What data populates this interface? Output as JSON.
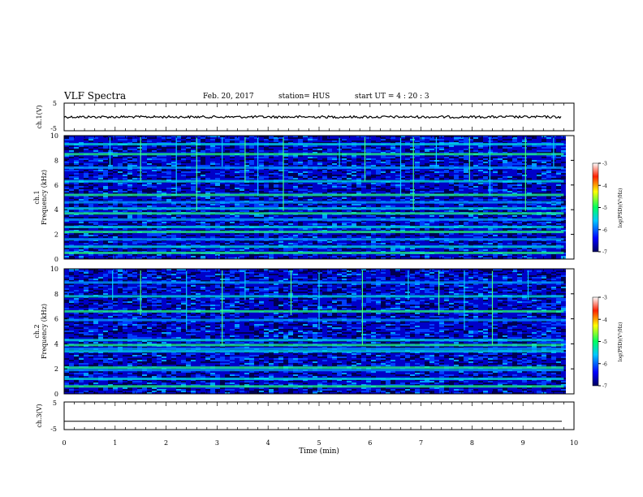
{
  "header": {
    "title": "VLF Spectra",
    "date": "Feb. 20, 2017",
    "station": "station= HUS",
    "start": "start  UT  =    4  : 20 : 3"
  },
  "colors": {
    "spectrogram_background": "#0a1a9a",
    "axis": "#000000"
  },
  "chart_data": [
    {
      "type": "line",
      "ylabel": "ch.1(V)",
      "ylim": [
        -5,
        5
      ],
      "yticks": [
        "5",
        "-5"
      ],
      "xlim": [
        0,
        10
      ],
      "series": [
        {
          "values": [
            0.0,
            0.1,
            -0.1,
            0.05,
            0.0
          ]
        }
      ],
      "level": 0.0
    },
    {
      "type": "heatmap",
      "ylabel": "ch.1\nFrequency (kHz)",
      "ylim": [
        0,
        10
      ],
      "yticks": [
        "0",
        "2",
        "4",
        "6",
        "8",
        "10"
      ],
      "xlim": [
        0,
        9.8
      ],
      "colorbar": {
        "label": "log(PSD)(V²/Hz)",
        "range": [
          -7,
          -3
        ],
        "ticks": [
          "-3",
          "-4",
          "-5",
          "-6",
          "-7"
        ]
      },
      "bright_bands_khz": [
        0.5,
        1.0,
        1.6,
        2.2,
        2.6,
        3.2,
        3.7,
        4.1,
        4.6,
        5.2,
        6.3,
        7.4,
        8.5,
        9.3
      ],
      "impulse_times_min": [
        0.9,
        1.5,
        2.2,
        2.6,
        3.1,
        3.55,
        3.8,
        4.3,
        5.4,
        5.9,
        6.6,
        6.85,
        7.3,
        7.95,
        8.35,
        9.05,
        9.6
      ]
    },
    {
      "type": "heatmap",
      "ylabel": "ch.2\nFrequency (kHz)",
      "ylim": [
        0,
        10
      ],
      "yticks": [
        "0",
        "2",
        "4",
        "6",
        "8",
        "10"
      ],
      "xlim": [
        0,
        9.8
      ],
      "colorbar": {
        "label": "log(PSD)(V²/Hz)",
        "range": [
          -7,
          -3
        ],
        "ticks": [
          "-3",
          "-4",
          "-5",
          "-6",
          "-7"
        ]
      },
      "bright_bands_khz": [
        0.6,
        1.2,
        1.9,
        2.1,
        3.4,
        3.6,
        3.9,
        4.3,
        5.9,
        6.6,
        7.8,
        8.9
      ],
      "impulse_times_min": [
        0.95,
        1.5,
        2.4,
        3.1,
        3.55,
        4.45,
        5.0,
        5.85,
        6.75,
        7.35,
        7.85,
        8.4,
        9.1
      ]
    },
    {
      "type": "line",
      "ylabel": "ch.3(V)",
      "ylim": [
        -5,
        5
      ],
      "yticks": [
        "5",
        "0",
        "-5"
      ],
      "xlim": [
        0,
        10
      ],
      "series": [
        {
          "values": [
            -2.0,
            -2.0
          ]
        }
      ],
      "level": -2.0
    }
  ],
  "xaxis": {
    "label": "Time  (min)",
    "ticks": [
      "0",
      "1",
      "2",
      "3",
      "4",
      "5",
      "6",
      "7",
      "8",
      "9",
      "10"
    ]
  }
}
